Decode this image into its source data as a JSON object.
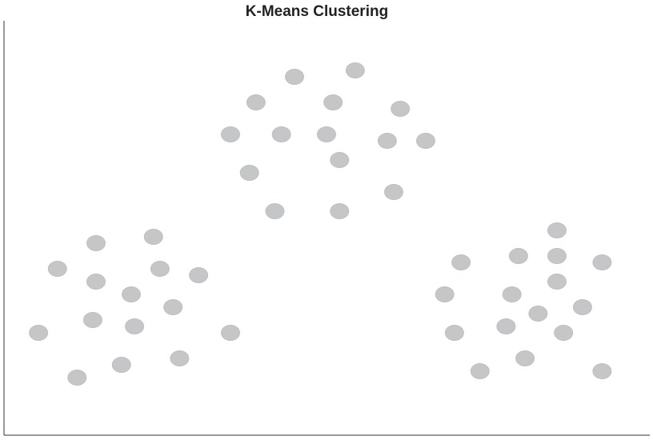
{
  "chart_data": {
    "type": "scatter",
    "title": "K-Means Clustering",
    "xlabel": "",
    "ylabel": "",
    "xlim": [
      0,
      100
    ],
    "ylim": [
      0,
      65
    ],
    "grid": false,
    "legend": "none",
    "point_color": "#c6c6c6",
    "point_edge_color": "#b8c2cc",
    "axis_color": "#333333",
    "series": [
      {
        "points": [
          [
            5.9,
            17.0
          ],
          [
            8.8,
            27.0
          ],
          [
            11.8,
            10.0
          ],
          [
            14.2,
            19.0
          ],
          [
            14.7,
            25.0
          ],
          [
            14.7,
            31.0
          ],
          [
            18.6,
            12.0
          ],
          [
            20.6,
            18.0
          ],
          [
            20.1,
            23.0
          ],
          [
            23.5,
            32.0
          ],
          [
            24.5,
            27.0
          ],
          [
            26.5,
            21.0
          ],
          [
            27.5,
            13.0
          ],
          [
            30.4,
            26.0
          ],
          [
            35.3,
            17.0
          ],
          [
            35.3,
            48.0
          ],
          [
            38.2,
            42.0
          ],
          [
            39.2,
            53.0
          ],
          [
            43.1,
            48.0
          ],
          [
            42.1,
            36.0
          ],
          [
            45.1,
            57.0
          ],
          [
            50.0,
            48.0
          ],
          [
            51.0,
            53.0
          ],
          [
            52.0,
            44.0
          ],
          [
            52.0,
            36.0
          ],
          [
            54.4,
            58.0
          ],
          [
            59.3,
            47.0
          ],
          [
            60.3,
            39.0
          ],
          [
            61.3,
            52.0
          ],
          [
            65.2,
            47.0
          ],
          [
            68.1,
            23.0
          ],
          [
            69.6,
            17.0
          ],
          [
            70.6,
            28.0
          ],
          [
            73.5,
            11.0
          ],
          [
            77.5,
            18.0
          ],
          [
            78.4,
            23.0
          ],
          [
            79.4,
            29.0
          ],
          [
            80.4,
            13.0
          ],
          [
            82.4,
            20.0
          ],
          [
            85.3,
            25.0
          ],
          [
            85.3,
            29.0
          ],
          [
            85.3,
            33.0
          ],
          [
            86.3,
            17.0
          ],
          [
            89.2,
            21.0
          ],
          [
            92.2,
            11.0
          ],
          [
            92.2,
            28.0
          ]
        ]
      }
    ]
  }
}
